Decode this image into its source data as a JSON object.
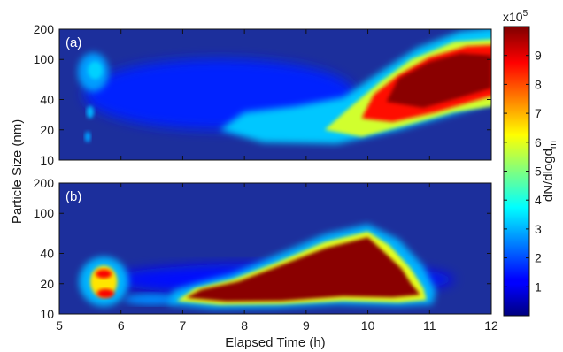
{
  "chart_data": {
    "type": "heatmap",
    "xlabel": "Elapsed Time (h)",
    "ylabel": "Particle Size (nm)",
    "xlim": [
      5,
      12
    ],
    "x_ticks": [
      "5",
      "6",
      "7",
      "8",
      "9",
      "10",
      "11",
      "12"
    ],
    "yscale": "log",
    "ylim": [
      10,
      200
    ],
    "y_ticks": [
      "10",
      "20",
      "40",
      "100",
      "200"
    ],
    "colorbar": {
      "label": "dN/dlogd",
      "label_subscript": "m",
      "multiplier": "x10",
      "multiplier_exponent": "5",
      "range": [
        0,
        10
      ],
      "ticks": [
        "1",
        "2",
        "3",
        "4",
        "5",
        "6",
        "7",
        "8",
        "9"
      ],
      "colormap": "jet"
    },
    "panels": [
      {
        "label": "(a)",
        "features": [
          {
            "x": 5.55,
            "y": 75,
            "value": 3.2
          },
          {
            "x": 5.5,
            "y": 30,
            "value": 2.8
          },
          {
            "x": 5.45,
            "y": 17,
            "value": 2.6
          },
          {
            "x": 8.6,
            "y": 24,
            "value": 3.3
          },
          {
            "x": 9.6,
            "y": 25,
            "value": 4.0
          },
          {
            "x": 10.3,
            "y": 40,
            "value": 8.5
          },
          {
            "x": 11.1,
            "y": 60,
            "value": 9.8
          },
          {
            "x": 11.6,
            "y": 80,
            "value": 9.5
          },
          {
            "x": 11.8,
            "y": 130,
            "value": 3.0
          }
        ]
      },
      {
        "label": "(b)",
        "features": [
          {
            "x": 5.75,
            "y": 20,
            "value": 8.0
          },
          {
            "x": 6.5,
            "y": 14,
            "value": 2.5
          },
          {
            "x": 7.3,
            "y": 16,
            "value": 9.5
          },
          {
            "x": 8.2,
            "y": 17,
            "value": 10
          },
          {
            "x": 9.0,
            "y": 25,
            "value": 10
          },
          {
            "x": 9.8,
            "y": 38,
            "value": 10
          },
          {
            "x": 10.5,
            "y": 20,
            "value": 10
          },
          {
            "x": 10.9,
            "y": 14,
            "value": 4.0
          }
        ]
      }
    ]
  }
}
